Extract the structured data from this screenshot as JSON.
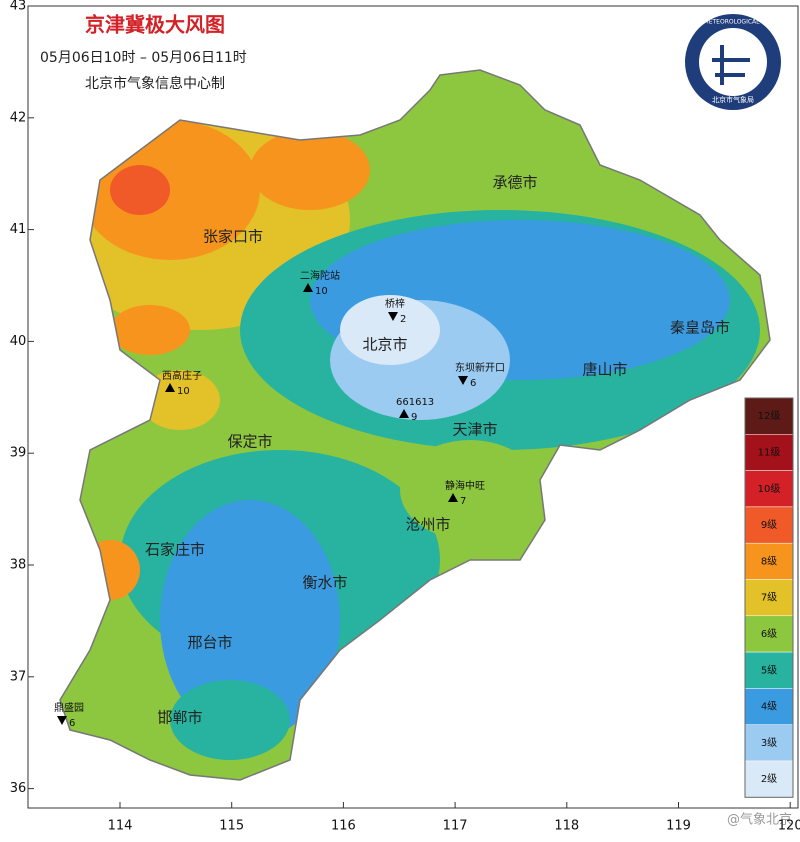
{
  "header": {
    "title": "京津冀极大风图",
    "time_range": "05月06日10时 – 05月06日11时",
    "producer": "北京市气象信息中心制"
  },
  "logo": {
    "text_en": "BEIJING METEOROLOGICAL SERVICE",
    "text_cn": "北京市气象局"
  },
  "axes": {
    "lat_ticks": [
      43,
      42,
      41,
      40,
      39,
      38,
      37,
      36
    ],
    "lon_ticks": [
      114,
      115,
      116,
      117,
      118,
      119,
      120
    ]
  },
  "cities": [
    "承德市",
    "张家口市",
    "北京市",
    "秦皇岛市",
    "唐山市",
    "天津市",
    "保定市",
    "沧州市",
    "石家庄市",
    "衡水市",
    "邢台市",
    "邯郸市"
  ],
  "stations": [
    {
      "name": "二海陀站",
      "level": 10
    },
    {
      "name": "桥梓",
      "level": 2
    },
    {
      "name": "东坝新开口",
      "level": 6
    },
    {
      "name": "661613",
      "level": 9
    },
    {
      "name": "西高庄子",
      "level": 10
    },
    {
      "name": "静海中旺",
      "level": 7
    },
    {
      "name": "鼎盛园",
      "level": 6
    }
  ],
  "legend": [
    {
      "label": "12级",
      "color": "#5e1a16"
    },
    {
      "label": "11级",
      "color": "#a3111a"
    },
    {
      "label": "10级",
      "color": "#d42127"
    },
    {
      "label": "9级",
      "color": "#f05a28"
    },
    {
      "label": "8级",
      "color": "#f7941d"
    },
    {
      "label": "7级",
      "color": "#e3c129"
    },
    {
      "label": "6级",
      "color": "#8dc63f"
    },
    {
      "label": "5级",
      "color": "#27b3a0"
    },
    {
      "label": "4级",
      "color": "#3b9be0"
    },
    {
      "label": "3级",
      "color": "#9ccbf2"
    },
    {
      "label": "2级",
      "color": "#d9e9f8"
    }
  ],
  "watermark": "@气象北京"
}
